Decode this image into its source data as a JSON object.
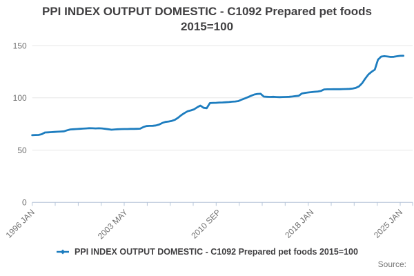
{
  "title": {
    "line1": "PPI INDEX OUTPUT DOMESTIC - C1092 Prepared pet foods",
    "line2": "2015=100"
  },
  "legend": {
    "label": "PPI INDEX OUTPUT DOMESTIC - C1092 Prepared pet foods 2015=100",
    "marker": "line-with-diamond-marker",
    "color": "#1d7dbf"
  },
  "source": {
    "label": "Source:"
  },
  "colors": {
    "line": "#1d7dbf",
    "grid": "#e6e6e6",
    "axis": "#b6c4d8",
    "axis_label": "#707070",
    "title_text": "#414042",
    "source_text": "#757575"
  },
  "chart_data": {
    "type": "line",
    "title": "PPI INDEX OUTPUT DOMESTIC - C1092 Prepared pet foods 2015=100",
    "grid": "horizontal",
    "legend_position": "bottom",
    "x_axis": {
      "start": "1996-01",
      "end": "2025-04",
      "tick_count": 17,
      "labels": [
        {
          "label": "1996 JAN",
          "month": 0
        },
        {
          "label": "2003 MAY",
          "month": 88
        },
        {
          "label": "2010 SEP",
          "month": 176
        },
        {
          "label": "2018 JAN",
          "month": 264
        },
        {
          "label": "2025 JAN",
          "month": 348
        }
      ]
    },
    "y_axis": {
      "lim": [
        0,
        150
      ],
      "ticks": [
        0,
        50,
        100,
        150
      ],
      "gridlines": [
        50,
        100,
        150
      ]
    },
    "series": [
      {
        "name": "PPI INDEX OUTPUT DOMESTIC - C1092 Prepared pet foods 2015=100",
        "color": "#1d7dbf",
        "points": [
          [
            "1996-01",
            64.3
          ],
          [
            "1996-04",
            64.5
          ],
          [
            "1996-07",
            64.6
          ],
          [
            "1996-10",
            65.2
          ],
          [
            "1997-01",
            66.9
          ],
          [
            "1997-04",
            67.0
          ],
          [
            "1997-07",
            67.2
          ],
          [
            "1997-10",
            67.4
          ],
          [
            "1998-01",
            67.6
          ],
          [
            "1998-04",
            67.8
          ],
          [
            "1998-07",
            68.0
          ],
          [
            "1998-10",
            69.0
          ],
          [
            "1999-01",
            69.8
          ],
          [
            "1999-04",
            70.0
          ],
          [
            "1999-07",
            70.2
          ],
          [
            "1999-10",
            70.4
          ],
          [
            "2000-01",
            70.6
          ],
          [
            "2000-04",
            70.8
          ],
          [
            "2000-07",
            71.0
          ],
          [
            "2000-10",
            70.9
          ],
          [
            "2001-01",
            70.8
          ],
          [
            "2001-04",
            70.9
          ],
          [
            "2001-07",
            70.8
          ],
          [
            "2001-10",
            70.4
          ],
          [
            "2002-01",
            70.0
          ],
          [
            "2002-04",
            69.5
          ],
          [
            "2002-07",
            69.8
          ],
          [
            "2002-10",
            70.0
          ],
          [
            "2003-01",
            70.1
          ],
          [
            "2003-04",
            70.2
          ],
          [
            "2003-07",
            70.2
          ],
          [
            "2003-10",
            70.3
          ],
          [
            "2004-01",
            70.3
          ],
          [
            "2004-04",
            70.4
          ],
          [
            "2004-07",
            70.5
          ],
          [
            "2004-10",
            72.0
          ],
          [
            "2005-01",
            73.0
          ],
          [
            "2005-04",
            73.2
          ],
          [
            "2005-07",
            73.3
          ],
          [
            "2005-10",
            73.6
          ],
          [
            "2006-01",
            74.5
          ],
          [
            "2006-04",
            76.0
          ],
          [
            "2006-07",
            77.0
          ],
          [
            "2006-10",
            77.4
          ],
          [
            "2007-01",
            78.0
          ],
          [
            "2007-04",
            79.0
          ],
          [
            "2007-07",
            81.0
          ],
          [
            "2007-10",
            83.5
          ],
          [
            "2008-01",
            85.5
          ],
          [
            "2008-04",
            87.2
          ],
          [
            "2008-07",
            88.0
          ],
          [
            "2008-10",
            89.0
          ],
          [
            "2009-01",
            91.0
          ],
          [
            "2009-04",
            92.6
          ],
          [
            "2009-07",
            90.5
          ],
          [
            "2009-10",
            90.1
          ],
          [
            "2010-01",
            95.0
          ],
          [
            "2010-04",
            95.2
          ],
          [
            "2010-07",
            95.3
          ],
          [
            "2010-10",
            95.5
          ],
          [
            "2011-01",
            95.6
          ],
          [
            "2011-04",
            95.8
          ],
          [
            "2011-07",
            96.0
          ],
          [
            "2011-10",
            96.3
          ],
          [
            "2012-01",
            96.5
          ],
          [
            "2012-04",
            96.9
          ],
          [
            "2012-07",
            98.3
          ],
          [
            "2012-10",
            99.4
          ],
          [
            "2013-01",
            100.7
          ],
          [
            "2013-04",
            102.0
          ],
          [
            "2013-07",
            103.2
          ],
          [
            "2013-10",
            103.8
          ],
          [
            "2014-01",
            103.9
          ],
          [
            "2014-04",
            101.2
          ],
          [
            "2014-07",
            101.0
          ],
          [
            "2014-10",
            100.9
          ],
          [
            "2015-01",
            101.0
          ],
          [
            "2015-04",
            100.8
          ],
          [
            "2015-07",
            100.7
          ],
          [
            "2015-10",
            100.8
          ],
          [
            "2016-01",
            100.9
          ],
          [
            "2016-04",
            101.0
          ],
          [
            "2016-07",
            101.3
          ],
          [
            "2016-10",
            101.7
          ],
          [
            "2017-01",
            102.0
          ],
          [
            "2017-04",
            104.2
          ],
          [
            "2017-07",
            104.8
          ],
          [
            "2017-10",
            105.2
          ],
          [
            "2018-01",
            105.5
          ],
          [
            "2018-04",
            105.8
          ],
          [
            "2018-07",
            106.1
          ],
          [
            "2018-10",
            106.6
          ],
          [
            "2019-01",
            108.1
          ],
          [
            "2019-04",
            108.2
          ],
          [
            "2019-07",
            108.2
          ],
          [
            "2019-10",
            108.3
          ],
          [
            "2020-01",
            108.3
          ],
          [
            "2020-04",
            108.3
          ],
          [
            "2020-07",
            108.4
          ],
          [
            "2020-10",
            108.5
          ],
          [
            "2021-01",
            108.6
          ],
          [
            "2021-04",
            108.9
          ],
          [
            "2021-07",
            109.5
          ],
          [
            "2021-10",
            111.0
          ],
          [
            "2022-01",
            114.0
          ],
          [
            "2022-04",
            118.5
          ],
          [
            "2022-07",
            122.5
          ],
          [
            "2022-10",
            125.0
          ],
          [
            "2023-01",
            127.0
          ],
          [
            "2023-04",
            136.5
          ],
          [
            "2023-07",
            139.5
          ],
          [
            "2023-10",
            139.9
          ],
          [
            "2024-01",
            139.6
          ],
          [
            "2024-04",
            139.2
          ],
          [
            "2024-07",
            139.3
          ],
          [
            "2024-10",
            139.8
          ],
          [
            "2025-01",
            140.2
          ],
          [
            "2025-04",
            140.3
          ]
        ]
      }
    ]
  }
}
